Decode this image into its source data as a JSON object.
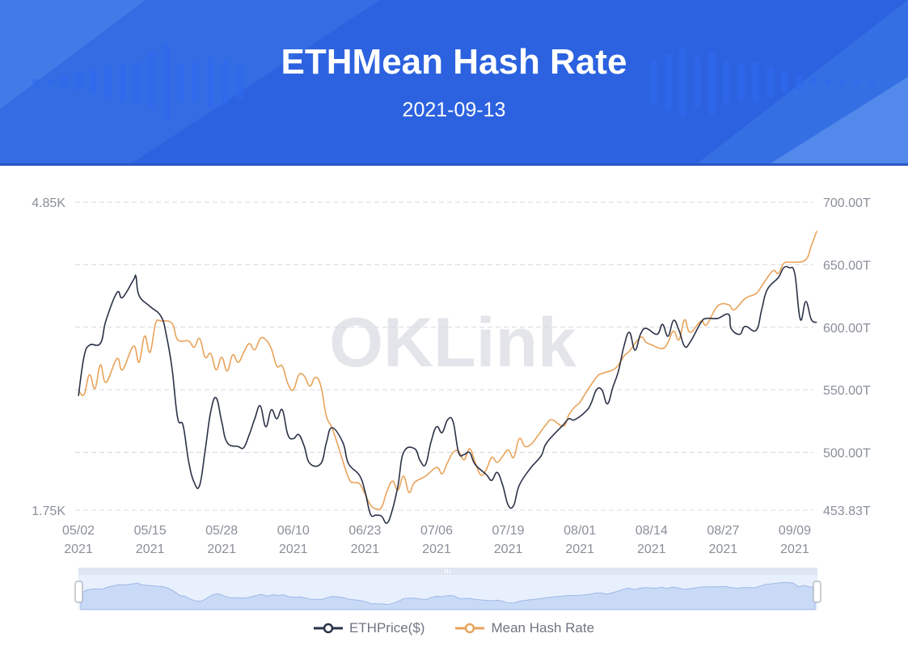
{
  "header": {
    "title": "ETHMean Hash Rate",
    "date": "2021-09-13",
    "background_color": "#2c62df"
  },
  "watermark": "OKLink",
  "legend": [
    {
      "label": "ETHPrice($)",
      "color": "#2b3247",
      "icon": "line-circle-icon"
    },
    {
      "label": "Mean Hash Rate",
      "color": "#e8a35a",
      "icon": "line-circle-icon"
    }
  ],
  "axes": {
    "left": {
      "max_label": "4.85K",
      "min_label": "1.75K"
    },
    "right": {
      "labels": [
        "700.00T",
        "650.00T",
        "600.00T",
        "550.00T",
        "500.00T",
        "453.83T"
      ]
    },
    "x": {
      "ticks": [
        {
          "md": "05/02",
          "y": "2021"
        },
        {
          "md": "05/15",
          "y": "2021"
        },
        {
          "md": "05/28",
          "y": "2021"
        },
        {
          "md": "06/10",
          "y": "2021"
        },
        {
          "md": "06/23",
          "y": "2021"
        },
        {
          "md": "07/06",
          "y": "2021"
        },
        {
          "md": "07/19",
          "y": "2021"
        },
        {
          "md": "08/01",
          "y": "2021"
        },
        {
          "md": "08/14",
          "y": "2021"
        },
        {
          "md": "08/27",
          "y": "2021"
        },
        {
          "md": "09/09",
          "y": "2021"
        }
      ]
    }
  },
  "chart_data": {
    "type": "line",
    "title": "ETHMean Hash Rate",
    "subtitle": "2021-09-13",
    "xlabel": "",
    "ylabel_left": "ETHPrice($)",
    "ylabel_right": "Mean Hash Rate",
    "x_range": [
      "2021-05-02",
      "2021-09-13"
    ],
    "ylim_left": [
      1750,
      4850
    ],
    "ylim_right": [
      453.83,
      700.0
    ],
    "grid": true,
    "legend_position": "bottom",
    "x_tick_labels": [
      "05/02 2021",
      "05/15 2021",
      "05/28 2021",
      "06/10 2021",
      "06/23 2021",
      "07/06 2021",
      "07/19 2021",
      "08/01 2021",
      "08/14 2021",
      "08/27 2021",
      "09/09 2021"
    ],
    "series": [
      {
        "name": "ETHPrice($)",
        "axis": "left",
        "color": "#2b3247",
        "points": [
          [
            "05/02",
            2900
          ],
          [
            "05/03",
            3290
          ],
          [
            "05/04",
            3410
          ],
          [
            "05/06",
            3430
          ],
          [
            "05/07",
            3660
          ],
          [
            "05/09",
            3940
          ],
          [
            "05/10",
            3890
          ],
          [
            "05/12",
            4070
          ],
          [
            "05/12",
            4100
          ],
          [
            "05/13",
            3910
          ],
          [
            "05/15",
            3800
          ],
          [
            "05/17",
            3700
          ],
          [
            "05/18",
            3500
          ],
          [
            "05/19",
            3170
          ],
          [
            "05/20",
            2680
          ],
          [
            "05/21",
            2600
          ],
          [
            "05/22",
            2240
          ],
          [
            "05/23",
            2030
          ],
          [
            "05/24",
            2000
          ],
          [
            "05/25",
            2350
          ],
          [
            "05/26",
            2740
          ],
          [
            "05/27",
            2880
          ],
          [
            "05/28",
            2640
          ],
          [
            "05/29",
            2430
          ],
          [
            "05/31",
            2390
          ],
          [
            "06/01",
            2380
          ],
          [
            "06/02",
            2510
          ],
          [
            "06/03",
            2670
          ],
          [
            "06/04",
            2800
          ],
          [
            "06/05",
            2590
          ],
          [
            "06/06",
            2760
          ],
          [
            "06/07",
            2670
          ],
          [
            "06/08",
            2760
          ],
          [
            "06/09",
            2510
          ],
          [
            "06/10",
            2470
          ],
          [
            "06/11",
            2510
          ],
          [
            "06/12",
            2390
          ],
          [
            "06/13",
            2220
          ],
          [
            "06/15",
            2220
          ],
          [
            "06/16",
            2430
          ],
          [
            "06/17",
            2580
          ],
          [
            "06/19",
            2430
          ],
          [
            "06/20",
            2220
          ],
          [
            "06/22",
            2100
          ],
          [
            "06/23",
            1940
          ],
          [
            "06/24",
            1710
          ],
          [
            "06/25",
            1700
          ],
          [
            "06/26",
            1690
          ],
          [
            "06/27",
            1620
          ],
          [
            "06/28",
            1760
          ],
          [
            "06/29",
            2000
          ],
          [
            "06/30",
            2330
          ],
          [
            "07/02",
            2370
          ],
          [
            "07/03",
            2250
          ],
          [
            "07/04",
            2210
          ],
          [
            "07/05",
            2440
          ],
          [
            "07/06",
            2590
          ],
          [
            "07/07",
            2530
          ],
          [
            "07/08",
            2660
          ],
          [
            "07/09",
            2640
          ],
          [
            "07/10",
            2330
          ],
          [
            "07/11",
            2310
          ],
          [
            "07/12",
            2330
          ],
          [
            "07/13",
            2210
          ],
          [
            "07/15",
            2110
          ],
          [
            "07/16",
            2050
          ],
          [
            "07/17",
            2130
          ],
          [
            "07/18",
            2000
          ],
          [
            "07/19",
            1800
          ],
          [
            "07/20",
            1800
          ],
          [
            "07/21",
            2000
          ],
          [
            "07/23",
            2170
          ],
          [
            "07/25",
            2300
          ],
          [
            "07/26",
            2430
          ],
          [
            "07/29",
            2610
          ],
          [
            "07/30",
            2670
          ],
          [
            "07/31",
            2660
          ],
          [
            "08/02",
            2740
          ],
          [
            "08/03",
            2820
          ],
          [
            "08/04",
            2960
          ],
          [
            "08/05",
            2960
          ],
          [
            "08/06",
            2820
          ],
          [
            "08/07",
            2990
          ],
          [
            "08/08",
            3150
          ],
          [
            "08/09",
            3400
          ],
          [
            "08/10",
            3540
          ],
          [
            "08/11",
            3360
          ],
          [
            "08/12",
            3520
          ],
          [
            "08/13",
            3580
          ],
          [
            "08/15",
            3520
          ],
          [
            "08/16",
            3620
          ],
          [
            "08/17",
            3500
          ],
          [
            "08/18",
            3660
          ],
          [
            "08/19",
            3560
          ],
          [
            "08/20",
            3400
          ],
          [
            "08/21",
            3440
          ],
          [
            "08/23",
            3640
          ],
          [
            "08/24",
            3680
          ],
          [
            "08/26",
            3680
          ],
          [
            "08/28",
            3720
          ],
          [
            "08/28",
            3580
          ],
          [
            "08/30",
            3520
          ],
          [
            "08/31",
            3600
          ],
          [
            "09/02",
            3560
          ],
          [
            "09/03",
            3770
          ],
          [
            "09/04",
            3970
          ],
          [
            "09/06",
            4090
          ],
          [
            "09/07",
            4190
          ],
          [
            "09/08",
            4190
          ],
          [
            "09/09",
            4130
          ],
          [
            "09/10",
            3670
          ],
          [
            "09/11",
            3850
          ],
          [
            "09/12",
            3670
          ],
          [
            "09/13",
            3640
          ]
        ]
      },
      {
        "name": "Mean Hash Rate",
        "axis": "right",
        "unit": "T",
        "color": "#e8a35a",
        "points": [
          [
            "05/02",
            550
          ],
          [
            "05/03",
            546
          ],
          [
            "05/04",
            562
          ],
          [
            "05/05",
            551
          ],
          [
            "05/06",
            570
          ],
          [
            "05/07",
            556
          ],
          [
            "05/09",
            575
          ],
          [
            "05/10",
            566
          ],
          [
            "05/12",
            585
          ],
          [
            "05/13",
            572
          ],
          [
            "05/14",
            593
          ],
          [
            "05/15",
            580
          ],
          [
            "05/16",
            603
          ],
          [
            "05/17",
            605
          ],
          [
            "05/19",
            603
          ],
          [
            "05/20",
            590
          ],
          [
            "05/22",
            589
          ],
          [
            "05/23",
            584
          ],
          [
            "05/24",
            591
          ],
          [
            "05/25",
            576
          ],
          [
            "05/26",
            579
          ],
          [
            "05/27",
            566
          ],
          [
            "05/28",
            576
          ],
          [
            "05/29",
            565
          ],
          [
            "05/30",
            578
          ],
          [
            "05/31",
            572
          ],
          [
            "06/01",
            580
          ],
          [
            "06/02",
            587
          ],
          [
            "06/03",
            582
          ],
          [
            "06/04",
            591
          ],
          [
            "06/05",
            590
          ],
          [
            "06/06",
            583
          ],
          [
            "06/07",
            569
          ],
          [
            "06/08",
            569
          ],
          [
            "06/09",
            555
          ],
          [
            "06/10",
            550
          ],
          [
            "06/11",
            562
          ],
          [
            "06/12",
            561
          ],
          [
            "06/13",
            553
          ],
          [
            "06/14",
            560
          ],
          [
            "06/15",
            553
          ],
          [
            "06/16",
            529
          ],
          [
            "06/17",
            520
          ],
          [
            "06/18",
            507
          ],
          [
            "06/20",
            480
          ],
          [
            "06/21",
            476
          ],
          [
            "06/22",
            475
          ],
          [
            "06/23",
            467
          ],
          [
            "06/24",
            458
          ],
          [
            "06/25",
            455
          ],
          [
            "06/26",
            456
          ],
          [
            "06/27",
            469
          ],
          [
            "06/28",
            477
          ],
          [
            "06/29",
            470
          ],
          [
            "06/30",
            481
          ],
          [
            "07/01",
            468
          ],
          [
            "07/02",
            476
          ],
          [
            "07/04",
            481
          ],
          [
            "07/06",
            488
          ],
          [
            "07/07",
            483
          ],
          [
            "07/08",
            492
          ],
          [
            "07/09",
            500
          ],
          [
            "07/10",
            501
          ],
          [
            "07/11",
            494
          ],
          [
            "07/12",
            503
          ],
          [
            "07/13",
            492
          ],
          [
            "07/14",
            482
          ],
          [
            "07/15",
            486
          ],
          [
            "07/16",
            496
          ],
          [
            "07/17",
            492
          ],
          [
            "07/18",
            497
          ],
          [
            "07/19",
            502
          ],
          [
            "07/20",
            496
          ],
          [
            "07/21",
            511
          ],
          [
            "07/22",
            505
          ],
          [
            "07/23",
            506
          ],
          [
            "07/24",
            511
          ],
          [
            "07/26",
            523
          ],
          [
            "07/27",
            526
          ],
          [
            "07/29",
            521
          ],
          [
            "07/30",
            530
          ],
          [
            "07/31",
            536
          ],
          [
            "08/01",
            540
          ],
          [
            "08/02",
            547
          ],
          [
            "08/04",
            560
          ],
          [
            "08/05",
            563
          ],
          [
            "08/07",
            566
          ],
          [
            "08/08",
            570
          ],
          [
            "08/09",
            577
          ],
          [
            "08/10",
            581
          ],
          [
            "08/12",
            592
          ],
          [
            "08/13",
            588
          ],
          [
            "08/14",
            586
          ],
          [
            "08/16",
            583
          ],
          [
            "08/17",
            588
          ],
          [
            "08/18",
            597
          ],
          [
            "08/19",
            590
          ],
          [
            "08/20",
            606
          ],
          [
            "08/21",
            596
          ],
          [
            "08/23",
            605
          ],
          [
            "08/24",
            602
          ],
          [
            "08/26",
            617
          ],
          [
            "08/28",
            618
          ],
          [
            "08/29",
            614
          ],
          [
            "08/31",
            623
          ],
          [
            "09/02",
            627
          ],
          [
            "09/03",
            633
          ],
          [
            "09/05",
            645
          ],
          [
            "09/06",
            643
          ],
          [
            "09/07",
            651
          ],
          [
            "09/08",
            652
          ],
          [
            "09/09",
            652
          ],
          [
            "09/11",
            654
          ],
          [
            "09/12",
            665
          ],
          [
            "09/13",
            677
          ]
        ]
      }
    ]
  },
  "datazoom": {
    "start_handle": "start-handle",
    "end_handle": "end-handle"
  }
}
